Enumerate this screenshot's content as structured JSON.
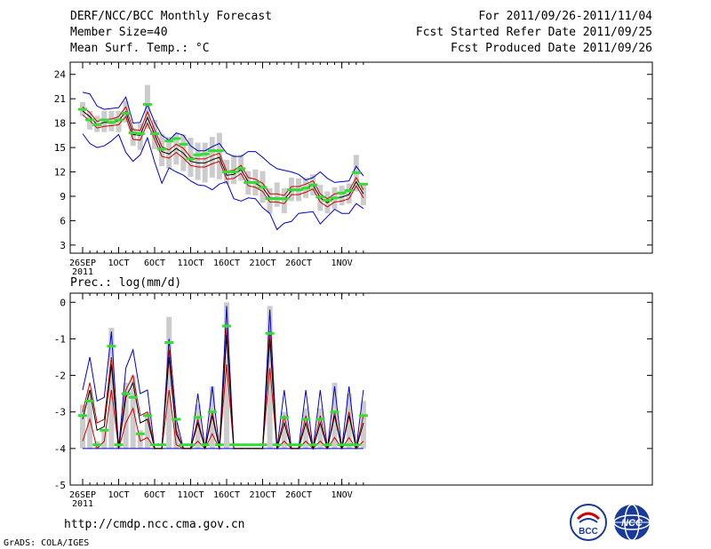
{
  "header": {
    "title": "DERF/NCC/BCC Monthly Forecast",
    "member_size": "Member Size=40",
    "variable1": "Mean Surf. Temp.: °C",
    "for_range": "For 2011/09/26-2011/11/04",
    "fcst_started": "Fcst Started Refer Date 2011/09/25",
    "fcst_produced": "Fcst Produced Date 2011/09/26"
  },
  "footer": {
    "url": "http://cmdp.ncc.cma.gov.cn",
    "credit": "GrADS: COLA/IGES",
    "logo_bcc": "BCC",
    "logo_ncc": "NCC"
  },
  "colors": {
    "max": "#0000cc",
    "min": "#0000cc",
    "mean": "#000000",
    "spread": "#cc0000",
    "bar": "#cccccc",
    "ref": "#33dd33"
  },
  "chart_data": [
    {
      "type": "line",
      "title": "Mean Surf. Temp.: °C",
      "ylim": [
        2,
        25.5
      ],
      "yticks": [
        3,
        6,
        9,
        12,
        15,
        18,
        21,
        24
      ],
      "x_tick_labels": [
        "26SEP",
        "1OCT",
        "6OCT",
        "11OCT",
        "16OCT",
        "21OCT",
        "26OCT",
        "1NOV"
      ],
      "x_tick_days": [
        0,
        5,
        10,
        15,
        20,
        25,
        30,
        36
      ],
      "x_sub_label": "2011",
      "days": 40,
      "series": [
        {
          "name": "max",
          "values": [
            21.8,
            21.6,
            20.1,
            19.7,
            19.8,
            19.9,
            21.2,
            18.0,
            18.1,
            20.3,
            18.1,
            16.5,
            15.9,
            16.8,
            16.5,
            15.2,
            14.6,
            14.6,
            15.1,
            15.5,
            14.3,
            13.9,
            13.9,
            14.5,
            14.5,
            13.8,
            13.0,
            12.4,
            12.2,
            12.0,
            11.7,
            11.0,
            11.3,
            12.0,
            11.2,
            10.7,
            10.8,
            10.9,
            12.7,
            11.5
          ]
        },
        {
          "name": "upper",
          "values": [
            20.0,
            19.3,
            18.2,
            18.5,
            18.5,
            18.8,
            20.0,
            17.2,
            17.1,
            19.4,
            17.2,
            15.1,
            14.7,
            15.4,
            14.9,
            13.8,
            13.6,
            13.6,
            14.0,
            14.3,
            12.1,
            12.2,
            12.8,
            11.3,
            11.1,
            10.6,
            9.3,
            9.3,
            9.1,
            10.2,
            10.2,
            10.5,
            10.9,
            9.3,
            8.7,
            9.3,
            9.4,
            9.7,
            11.3,
            9.8
          ]
        },
        {
          "name": "mean",
          "values": [
            19.5,
            18.8,
            17.8,
            18.1,
            18.1,
            18.3,
            19.4,
            16.6,
            16.5,
            18.7,
            16.6,
            14.5,
            14.2,
            14.9,
            14.3,
            13.3,
            13.1,
            13.1,
            13.5,
            13.8,
            11.6,
            11.7,
            12.3,
            10.8,
            10.6,
            10.1,
            8.8,
            8.8,
            8.6,
            9.7,
            9.7,
            10.0,
            10.4,
            8.8,
            8.2,
            8.8,
            8.9,
            9.2,
            10.8,
            9.3
          ]
        },
        {
          "name": "lower",
          "values": [
            19.0,
            18.3,
            17.4,
            17.6,
            17.7,
            17.8,
            18.8,
            16.0,
            15.9,
            18.0,
            16.0,
            13.9,
            13.7,
            14.4,
            13.7,
            12.8,
            12.6,
            12.6,
            13.0,
            13.3,
            11.1,
            11.2,
            11.8,
            10.3,
            10.1,
            9.6,
            8.3,
            8.3,
            8.1,
            9.2,
            9.2,
            9.5,
            9.9,
            8.3,
            7.7,
            8.3,
            8.4,
            8.7,
            10.3,
            8.8
          ]
        },
        {
          "name": "min",
          "values": [
            16.7,
            15.5,
            15.0,
            15.2,
            15.8,
            16.6,
            14.4,
            13.3,
            14.1,
            16.2,
            13.2,
            10.6,
            12.5,
            12.0,
            11.6,
            10.9,
            10.4,
            10.3,
            9.8,
            10.5,
            10.8,
            8.7,
            8.4,
            8.8,
            8.7,
            7.6,
            6.9,
            4.9,
            5.7,
            5.9,
            6.9,
            7.0,
            7.1,
            5.6,
            6.5,
            7.4,
            6.9,
            6.9,
            8.1,
            7.5
          ]
        }
      ],
      "bars_low": [
        18.9,
        17.2,
        16.9,
        16.9,
        17.0,
        16.9,
        18.1,
        15.2,
        14.7,
        17.3,
        14.8,
        12.7,
        12.4,
        12.9,
        12.1,
        11.4,
        11.0,
        10.7,
        11.3,
        11.1,
        10.5,
        10.5,
        10.9,
        9.2,
        9.1,
        8.2,
        6.9,
        7.7,
        6.9,
        8.4,
        8.4,
        8.8,
        9.1,
        7.2,
        6.9,
        7.4,
        7.9,
        8.1,
        9.6,
        7.9
      ],
      "bars_high": [
        20.6,
        19.5,
        18.9,
        19.5,
        19.5,
        19.5,
        20.7,
        17.4,
        18.0,
        22.7,
        18.4,
        16.7,
        16.3,
        16.7,
        16.6,
        16.2,
        15.6,
        15.6,
        16.3,
        16.8,
        13.5,
        14.1,
        14.1,
        12.1,
        12.3,
        12.1,
        10.0,
        10.7,
        10.0,
        11.3,
        11.2,
        11.3,
        11.7,
        10.4,
        9.6,
        10.1,
        10.3,
        10.6,
        14.1,
        10.6
      ],
      "reference": [
        19.7,
        18.4,
        17.8,
        18.4,
        18.1,
        18.4,
        19.2,
        16.8,
        16.7,
        20.3,
        16.7,
        14.8,
        15.8,
        16.1,
        15.4,
        13.6,
        14.1,
        14.2,
        14.6,
        14.6,
        12.0,
        12.0,
        12.4,
        10.7,
        10.7,
        10.1,
        8.7,
        8.7,
        8.7,
        9.8,
        9.8,
        10.0,
        10.4,
        8.9,
        8.5,
        8.8,
        9.4,
        9.7,
        11.9,
        10.5
      ]
    },
    {
      "type": "line",
      "title": "Prec.: log(mm/d)",
      "ylim": [
        -5,
        0.25
      ],
      "yticks": [
        -5,
        -4,
        -3,
        -2,
        -1,
        0
      ],
      "x_tick_labels": [
        "26SEP",
        "1OCT",
        "6OCT",
        "11OCT",
        "16OCT",
        "21OCT",
        "26OCT",
        "1NOV"
      ],
      "x_tick_days": [
        0,
        5,
        10,
        15,
        20,
        25,
        30,
        36
      ],
      "x_sub_label": "2011",
      "days": 40,
      "series": [
        {
          "name": "max",
          "values": [
            -2.4,
            -1.5,
            -2.7,
            -2.6,
            -0.8,
            -4.0,
            -1.8,
            -1.3,
            -2.5,
            -2.4,
            -4.0,
            -4.0,
            -1.0,
            -3.2,
            -4.0,
            -4.0,
            -2.5,
            -4.0,
            -2.3,
            -4.0,
            -0.1,
            -4.0,
            -4.0,
            -4.0,
            -4.0,
            -4.0,
            -0.2,
            -4.0,
            -2.4,
            -4.0,
            -4.0,
            -2.4,
            -4.0,
            -2.4,
            -4.0,
            -2.3,
            -4.0,
            -2.3,
            -4.0,
            -2.4
          ]
        },
        {
          "name": "upper",
          "values": [
            -3.0,
            -2.2,
            -3.3,
            -3.2,
            -1.5,
            -4.0,
            -2.4,
            -2.0,
            -3.1,
            -3.0,
            -4.0,
            -4.0,
            -1.3,
            -3.5,
            -4.0,
            -4.0,
            -3.2,
            -4.0,
            -3.0,
            -4.0,
            -0.7,
            -4.0,
            -4.0,
            -4.0,
            -4.0,
            -4.0,
            -0.8,
            -4.0,
            -3.1,
            -4.0,
            -4.0,
            -3.1,
            -4.0,
            -3.1,
            -4.0,
            -3.0,
            -4.0,
            -3.0,
            -4.0,
            -3.1
          ]
        },
        {
          "name": "mean",
          "values": [
            -3.2,
            -2.4,
            -3.5,
            -3.4,
            -1.7,
            -4.0,
            -2.6,
            -2.2,
            -3.3,
            -3.2,
            -4.0,
            -4.0,
            -1.5,
            -3.6,
            -4.0,
            -4.0,
            -3.3,
            -4.0,
            -3.1,
            -4.0,
            -0.9,
            -4.0,
            -4.0,
            -4.0,
            -4.0,
            -4.0,
            -1.0,
            -4.0,
            -3.3,
            -4.0,
            -4.0,
            -3.3,
            -4.0,
            -3.3,
            -4.0,
            -3.1,
            -4.0,
            -3.1,
            -4.0,
            -3.3
          ]
        },
        {
          "name": "lower",
          "values": [
            -3.8,
            -3.2,
            -4.0,
            -3.8,
            -2.4,
            -4.0,
            -3.3,
            -2.9,
            -3.8,
            -3.7,
            -4.0,
            -4.0,
            -2.4,
            -3.9,
            -4.0,
            -4.0,
            -3.8,
            -4.0,
            -3.6,
            -4.0,
            -1.7,
            -4.0,
            -4.0,
            -4.0,
            -4.0,
            -4.0,
            -1.8,
            -4.0,
            -3.8,
            -4.0,
            -4.0,
            -3.8,
            -4.0,
            -3.8,
            -4.0,
            -3.7,
            -4.0,
            -3.7,
            -4.0,
            -3.8
          ]
        },
        {
          "name": "min",
          "values": [
            -4.0,
            -4.0,
            -4.0,
            -4.0,
            -4.0,
            -4.0,
            -4.0,
            -4.0,
            -4.0,
            -4.0,
            -4.0,
            -4.0,
            -4.0,
            -4.0,
            -4.0,
            -4.0,
            -4.0,
            -4.0,
            -4.0,
            -4.0,
            -4.0,
            -4.0,
            -4.0,
            -4.0,
            -4.0,
            -4.0,
            -4.0,
            -4.0,
            -4.0,
            -4.0,
            -4.0,
            -4.0,
            -4.0,
            -4.0,
            -4.0,
            -4.0,
            -4.0,
            -4.0,
            -4.0,
            -4.0
          ]
        }
      ],
      "bars_low": [
        -4.0,
        -4.0,
        -4.0,
        -4.0,
        -4.0,
        -4.0,
        -4.0,
        -4.0,
        -4.0,
        -4.0,
        -4.0,
        -4.0,
        -4.0,
        -4.0,
        -4.0,
        -4.0,
        -4.0,
        -4.0,
        -4.0,
        -4.0,
        -4.0,
        -4.0,
        -4.0,
        -4.0,
        -4.0,
        -4.0,
        -4.0,
        -4.0,
        -4.0,
        -4.0,
        -4.0,
        -4.0,
        -4.0,
        -4.0,
        -4.0,
        -4.0,
        -4.0,
        -4.0,
        -4.0,
        -4.0
      ],
      "bars_high": [
        -2.8,
        -2.4,
        -3.8,
        -3.5,
        -0.7,
        -3.8,
        -2.2,
        -2.0,
        -3.5,
        -3.0,
        -4.0,
        -4.0,
        -0.4,
        -3.3,
        -4.0,
        -4.0,
        -2.8,
        -4.0,
        -2.3,
        -4.0,
        0.0,
        -4.0,
        -4.0,
        -4.0,
        -4.0,
        -4.0,
        -0.1,
        -4.0,
        -3.0,
        -4.0,
        -4.0,
        -2.9,
        -4.0,
        -2.9,
        -4.0,
        -2.2,
        -4.0,
        -2.5,
        -4.0,
        -2.7
      ],
      "reference": [
        -3.1,
        -2.7,
        -3.9,
        -3.5,
        -1.2,
        -3.9,
        -2.5,
        -2.6,
        -3.6,
        -3.1,
        -3.9,
        -3.9,
        -1.1,
        -3.2,
        -3.9,
        -3.9,
        -3.15,
        -3.9,
        -3.0,
        -3.9,
        -0.65,
        -3.9,
        -3.9,
        -3.9,
        -3.9,
        -3.9,
        -0.85,
        -3.9,
        -3.15,
        -3.9,
        -3.9,
        -3.2,
        -3.9,
        -3.2,
        -3.9,
        -3.0,
        -3.9,
        -3.9,
        -3.9,
        -3.1
      ]
    }
  ]
}
